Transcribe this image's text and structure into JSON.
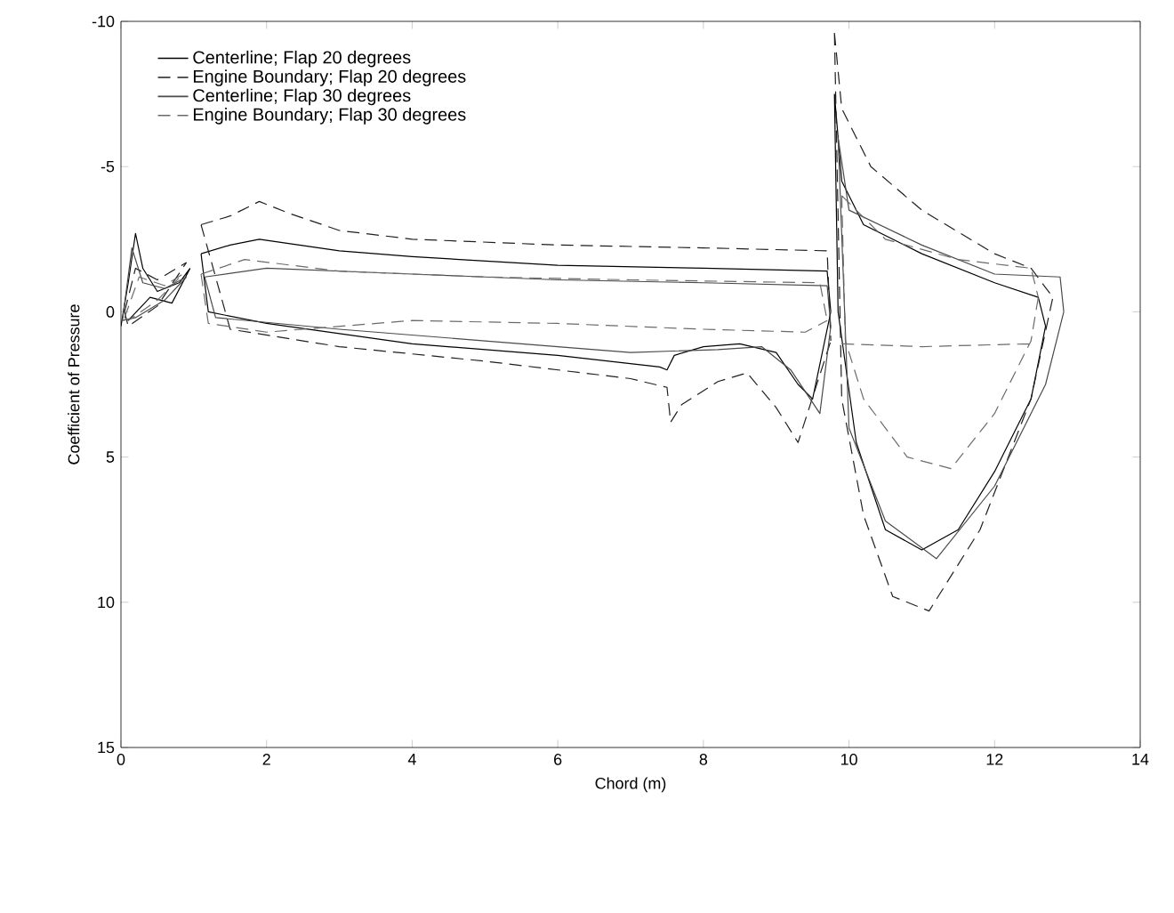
{
  "chart_data": {
    "type": "line",
    "xlabel": "Chord (m)",
    "ylabel": "Coefficient of Pressure",
    "xlim": [
      0,
      14
    ],
    "ylim": [
      15,
      -10
    ],
    "xticks": [
      0,
      2,
      4,
      6,
      8,
      10,
      12,
      14
    ],
    "yticks": [
      -10,
      -5,
      0,
      5,
      10,
      15
    ],
    "legend": "top left",
    "grid": false,
    "marker": "none",
    "series": [
      {
        "name": "Centerline;  Flap 20 degrees",
        "color": "#000000",
        "line_style": "solid",
        "x": [
          0,
          0.1,
          0.2,
          0.3,
          0.5,
          0.8,
          0.95,
          null,
          0.1,
          0.4,
          0.7,
          0.95,
          null,
          1.1,
          1.5,
          1.9,
          3,
          4,
          6,
          8,
          9.7,
          9.75,
          null,
          1.1,
          1.2,
          2,
          4,
          6,
          7.4,
          7.5,
          7.6,
          8,
          8.5,
          9,
          9.3,
          9.5,
          9.75,
          null,
          9.8,
          9.9,
          10.2,
          11,
          12,
          12.6,
          12.7,
          null,
          9.8,
          9.85,
          10.1,
          10.5,
          11,
          11.5,
          12,
          12.5,
          12.7
        ],
        "values": [
          0.5,
          -1,
          -2.7,
          -1.5,
          -0.7,
          -1,
          -1.5,
          null,
          0.3,
          -0.5,
          -0.3,
          -1.5,
          null,
          -2,
          -2.3,
          -2.5,
          -2.1,
          -1.9,
          -1.6,
          -1.5,
          -1.4,
          0,
          null,
          -2,
          0,
          0.4,
          1.1,
          1.5,
          1.9,
          2,
          1.5,
          1.2,
          1.1,
          1.4,
          2.5,
          3,
          0,
          null,
          -7.5,
          -4.5,
          -3,
          -2,
          -1,
          -0.5,
          0.5,
          null,
          -7.5,
          0,
          4.5,
          7.5,
          8.2,
          7.5,
          5.5,
          3,
          0.5
        ]
      },
      {
        "name": "Engine Boundary;  Flap 20 degrees",
        "color": "#1f1f1f",
        "line_style": "dashed",
        "x": [
          0.05,
          0.2,
          0.5,
          0.9,
          null,
          0.05,
          0.1,
          0.5,
          0.9,
          null,
          1.1,
          1.5,
          1.9,
          2.3,
          3,
          4,
          6,
          8,
          9.7,
          9.75,
          null,
          1.1,
          1.5,
          3,
          5,
          7,
          7.5,
          7.55,
          7.7,
          8.2,
          8.6,
          9,
          9.3,
          9.75,
          null,
          9.8,
          9.9,
          10.3,
          11,
          12,
          12.5,
          12.8,
          null,
          9.8,
          9.9,
          10.2,
          10.6,
          11.1,
          11.8,
          12.5,
          12.8
        ],
        "values": [
          0,
          -1.5,
          -1.1,
          -1.7,
          null,
          0,
          0.5,
          -0.2,
          -1.7,
          null,
          -3,
          -3.3,
          -3.8,
          -3.4,
          -2.8,
          -2.5,
          -2.3,
          -2.2,
          -2.1,
          1,
          null,
          -3,
          0.6,
          1.2,
          1.7,
          2.3,
          2.6,
          3.8,
          3.2,
          2.4,
          2.1,
          3.3,
          4.5,
          1,
          null,
          -9.6,
          -7,
          -5,
          -3.5,
          -2,
          -1.5,
          -0.5,
          null,
          -9.6,
          3,
          7,
          9.8,
          10.3,
          7.5,
          3,
          -0.5
        ]
      },
      {
        "name": "Centerline;  Flap 30 degrees",
        "color": "#4a4a4a",
        "line_style": "solid",
        "x": [
          0.02,
          0.15,
          0.3,
          0.6,
          0.9,
          null,
          0.02,
          0.2,
          0.6,
          0.9,
          null,
          1.15,
          2,
          4,
          6,
          8,
          9.7,
          9.75,
          null,
          1.15,
          1.3,
          3,
          5,
          7,
          8.2,
          8.8,
          9.2,
          9.6,
          9.75,
          null,
          9.85,
          10,
          11,
          12,
          12.9,
          12.95,
          null,
          9.85,
          10,
          10.5,
          11.2,
          12,
          12.7,
          12.95
        ],
        "values": [
          0.3,
          -2.2,
          -1,
          -0.8,
          -1.2,
          null,
          0.3,
          0.2,
          -0.4,
          -1.2,
          null,
          -1.2,
          -1.5,
          -1.3,
          -1.1,
          -1,
          -0.9,
          0.5,
          null,
          -1.2,
          0.2,
          0.6,
          1,
          1.4,
          1.3,
          1.2,
          2,
          3.5,
          0.5,
          null,
          -6,
          -3.5,
          -2.3,
          -1.3,
          -1.2,
          0,
          null,
          -6,
          4,
          7.2,
          8.5,
          6,
          2.5,
          0
        ]
      },
      {
        "name": "Engine Boundary;  Flap 30 degrees",
        "color": "#6a6a6a",
        "line_style": "dashed",
        "x": [
          0.05,
          0.25,
          0.6,
          0.85,
          null,
          0.05,
          0.1,
          0.5,
          0.85,
          null,
          1.1,
          1.7,
          3,
          5,
          7,
          9.6,
          9.7,
          null,
          1.1,
          1.2,
          2,
          4,
          6,
          8,
          9.4,
          9.7,
          null,
          9.9,
          10.5,
          11.5,
          12.5,
          12.6,
          null,
          9.9,
          9.95,
          10.2,
          10.8,
          11.4,
          12,
          12.5,
          12.6,
          null,
          9.9,
          11,
          12.5
        ],
        "values": [
          0.2,
          -1.2,
          -0.9,
          -1.3,
          null,
          0.2,
          0.3,
          -0.4,
          -1.3,
          null,
          -1.3,
          -1.8,
          -1.4,
          -1.2,
          -1.1,
          -1,
          0.3,
          null,
          -1.3,
          0.4,
          0.7,
          0.3,
          0.4,
          0.6,
          0.7,
          0.3,
          null,
          -4,
          -2.5,
          -1.8,
          -1.5,
          -0.5,
          null,
          -4,
          1,
          3,
          5,
          5.4,
          3.5,
          1,
          -0.5,
          null,
          1.1,
          1.2,
          1.1
        ]
      }
    ]
  }
}
